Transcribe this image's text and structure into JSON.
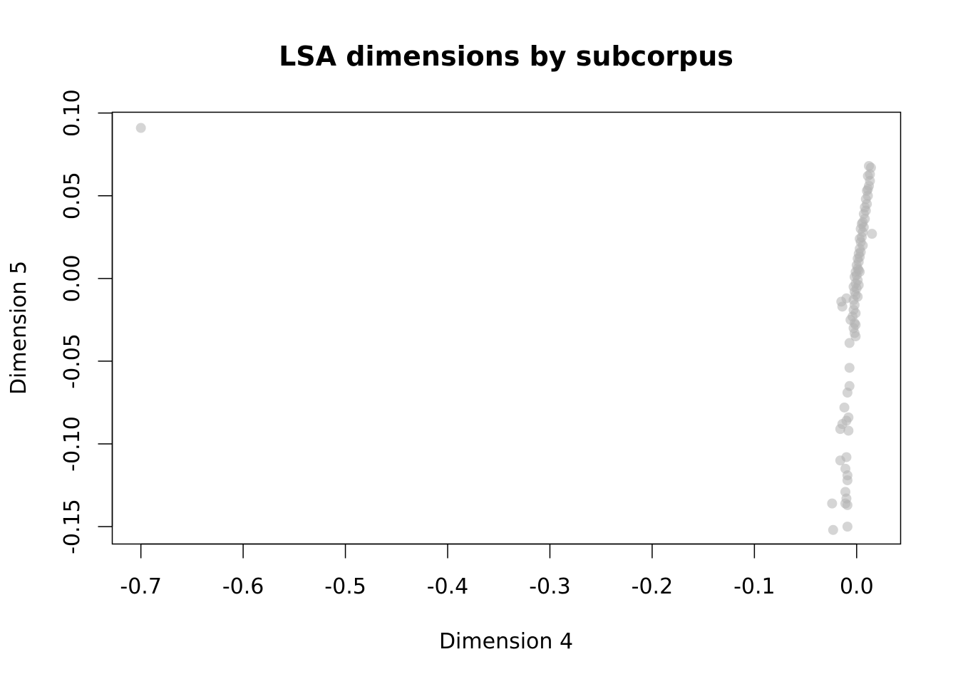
{
  "chart_data": {
    "type": "scatter",
    "title": "LSA dimensions by subcorpus",
    "xlabel": "Dimension 4",
    "ylabel": "Dimension 5",
    "xlim": [
      -0.728,
      0.043
    ],
    "ylim": [
      -0.1605,
      0.1005
    ],
    "x_ticks": [
      -0.7,
      -0.6,
      -0.5,
      -0.4,
      -0.3,
      -0.2,
      -0.1,
      0.0
    ],
    "x_tick_labels": [
      "-0.7",
      "-0.6",
      "-0.5",
      "-0.4",
      "-0.3",
      "-0.2",
      "-0.1",
      "0.0"
    ],
    "y_ticks": [
      -0.15,
      -0.1,
      -0.05,
      0.0,
      0.05,
      0.1
    ],
    "y_tick_labels": [
      "-0.15",
      "-0.10",
      "-0.05",
      "0.00",
      "0.05",
      "0.10"
    ],
    "grid": false,
    "point_color": "#b3b3b3",
    "series": [
      {
        "values": [
          {
            "x": -0.7,
            "y": 0.091
          },
          {
            "x": 0.012,
            "y": 0.068
          },
          {
            "x": 0.014,
            "y": 0.067
          },
          {
            "x": 0.013,
            "y": 0.063
          },
          {
            "x": 0.011,
            "y": 0.062
          },
          {
            "x": 0.013,
            "y": 0.059
          },
          {
            "x": 0.012,
            "y": 0.056
          },
          {
            "x": 0.011,
            "y": 0.054
          },
          {
            "x": 0.01,
            "y": 0.053
          },
          {
            "x": 0.011,
            "y": 0.05
          },
          {
            "x": 0.009,
            "y": 0.048
          },
          {
            "x": 0.01,
            "y": 0.045
          },
          {
            "x": 0.008,
            "y": 0.043
          },
          {
            "x": 0.009,
            "y": 0.041
          },
          {
            "x": 0.007,
            "y": 0.039
          },
          {
            "x": 0.008,
            "y": 0.036
          },
          {
            "x": 0.006,
            "y": 0.034
          },
          {
            "x": 0.005,
            "y": 0.033
          },
          {
            "x": 0.007,
            "y": 0.031
          },
          {
            "x": 0.004,
            "y": 0.03
          },
          {
            "x": 0.006,
            "y": 0.028
          },
          {
            "x": 0.015,
            "y": 0.027
          },
          {
            "x": 0.005,
            "y": 0.025
          },
          {
            "x": 0.003,
            "y": 0.024
          },
          {
            "x": 0.004,
            "y": 0.022
          },
          {
            "x": 0.006,
            "y": 0.02
          },
          {
            "x": 0.003,
            "y": 0.018
          },
          {
            "x": 0.004,
            "y": 0.016
          },
          {
            "x": 0.002,
            "y": 0.015
          },
          {
            "x": 0.003,
            "y": 0.013
          },
          {
            "x": 0.001,
            "y": 0.012
          },
          {
            "x": 0.002,
            "y": 0.01
          },
          {
            "x": 0.0,
            "y": 0.008
          },
          {
            "x": 0.001,
            "y": 0.006
          },
          {
            "x": 0.002,
            "y": 0.005
          },
          {
            "x": -0.001,
            "y": 0.004
          },
          {
            "x": 0.003,
            "y": 0.004
          },
          {
            "x": 0.0,
            "y": 0.002
          },
          {
            "x": -0.002,
            "y": 0.001
          },
          {
            "x": 0.001,
            "y": -0.001
          },
          {
            "x": -0.001,
            "y": -0.003
          },
          {
            "x": 0.002,
            "y": -0.004
          },
          {
            "x": -0.003,
            "y": -0.005
          },
          {
            "x": 0.0,
            "y": -0.006
          },
          {
            "x": -0.002,
            "y": -0.008
          },
          {
            "x": -0.001,
            "y": -0.01
          },
          {
            "x": 0.001,
            "y": -0.011
          },
          {
            "x": -0.01,
            "y": -0.012
          },
          {
            "x": -0.003,
            "y": -0.013
          },
          {
            "x": -0.015,
            "y": -0.014
          },
          {
            "x": -0.002,
            "y": -0.016
          },
          {
            "x": -0.014,
            "y": -0.017
          },
          {
            "x": -0.003,
            "y": -0.019
          },
          {
            "x": -0.001,
            "y": -0.021
          },
          {
            "x": -0.004,
            "y": -0.023
          },
          {
            "x": -0.006,
            "y": -0.025
          },
          {
            "x": -0.002,
            "y": -0.027
          },
          {
            "x": -0.001,
            "y": -0.028
          },
          {
            "x": -0.003,
            "y": -0.03
          },
          {
            "x": -0.002,
            "y": -0.033
          },
          {
            "x": -0.001,
            "y": -0.035
          },
          {
            "x": -0.007,
            "y": -0.039
          },
          {
            "x": -0.007,
            "y": -0.054
          },
          {
            "x": -0.007,
            "y": -0.065
          },
          {
            "x": -0.009,
            "y": -0.069
          },
          {
            "x": -0.012,
            "y": -0.078
          },
          {
            "x": -0.008,
            "y": -0.084
          },
          {
            "x": -0.01,
            "y": -0.086
          },
          {
            "x": -0.014,
            "y": -0.088
          },
          {
            "x": -0.016,
            "y": -0.091
          },
          {
            "x": -0.008,
            "y": -0.092
          },
          {
            "x": -0.01,
            "y": -0.108
          },
          {
            "x": -0.016,
            "y": -0.11
          },
          {
            "x": -0.011,
            "y": -0.115
          },
          {
            "x": -0.009,
            "y": -0.119
          },
          {
            "x": -0.009,
            "y": -0.122
          },
          {
            "x": -0.011,
            "y": -0.129
          },
          {
            "x": -0.01,
            "y": -0.133
          },
          {
            "x": -0.024,
            "y": -0.136
          },
          {
            "x": -0.011,
            "y": -0.136
          },
          {
            "x": -0.009,
            "y": -0.137
          },
          {
            "x": -0.009,
            "y": -0.15
          },
          {
            "x": -0.023,
            "y": -0.152
          }
        ]
      }
    ]
  }
}
